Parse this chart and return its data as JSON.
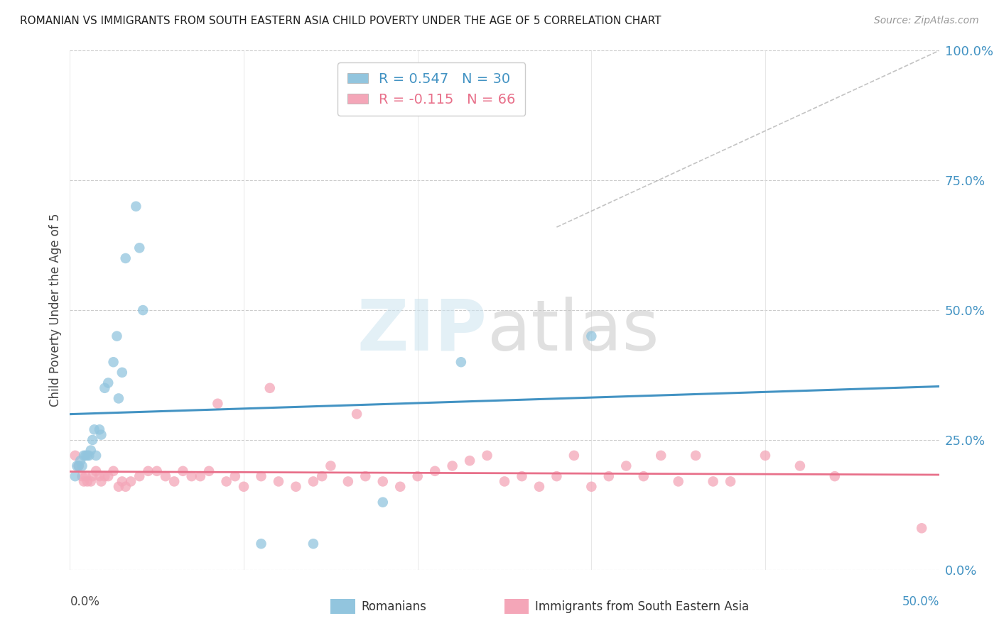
{
  "title": "ROMANIAN VS IMMIGRANTS FROM SOUTH EASTERN ASIA CHILD POVERTY UNDER THE AGE OF 5 CORRELATION CHART",
  "source": "Source: ZipAtlas.com",
  "ylabel": "Child Poverty Under the Age of 5",
  "ytick_vals": [
    0,
    25,
    50,
    75,
    100
  ],
  "xlim": [
    0,
    50
  ],
  "ylim": [
    0,
    100
  ],
  "blue_color": "#92c5de",
  "pink_color": "#f4a6b8",
  "blue_line_color": "#4393c3",
  "pink_line_color": "#e8708a",
  "romanians_x": [
    0.3,
    0.4,
    0.5,
    0.6,
    0.7,
    0.8,
    0.9,
    1.0,
    1.1,
    1.2,
    1.3,
    1.4,
    1.5,
    1.7,
    1.8,
    2.0,
    2.2,
    2.5,
    2.7,
    3.0,
    3.2,
    3.8,
    4.2,
    11.0,
    14.0,
    18.0,
    22.5,
    30.0,
    2.8,
    4.0
  ],
  "romanians_y": [
    18,
    20,
    20,
    21,
    20,
    22,
    22,
    22,
    22,
    23,
    25,
    27,
    22,
    27,
    26,
    35,
    36,
    40,
    45,
    38,
    60,
    70,
    50,
    5,
    5,
    13,
    40,
    45,
    33,
    62
  ],
  "immigrants_x": [
    0.3,
    0.5,
    0.7,
    0.8,
    0.9,
    1.0,
    1.2,
    1.3,
    1.5,
    1.7,
    1.8,
    2.0,
    2.2,
    2.5,
    2.8,
    3.0,
    3.2,
    3.5,
    4.0,
    4.5,
    5.0,
    5.5,
    6.0,
    6.5,
    7.0,
    7.5,
    8.0,
    9.0,
    9.5,
    10.0,
    11.0,
    12.0,
    13.0,
    14.0,
    14.5,
    15.0,
    16.0,
    16.5,
    17.0,
    18.0,
    19.0,
    20.0,
    21.0,
    22.0,
    23.0,
    24.0,
    25.0,
    26.0,
    27.0,
    28.0,
    29.0,
    30.0,
    31.0,
    32.0,
    33.0,
    34.0,
    35.0,
    36.0,
    37.0,
    38.0,
    40.0,
    42.0,
    44.0,
    49.0,
    8.5,
    11.5
  ],
  "immigrants_y": [
    22,
    20,
    18,
    17,
    18,
    17,
    17,
    18,
    19,
    18,
    17,
    18,
    18,
    19,
    16,
    17,
    16,
    17,
    18,
    19,
    19,
    18,
    17,
    19,
    18,
    18,
    19,
    17,
    18,
    16,
    18,
    17,
    16,
    17,
    18,
    20,
    17,
    30,
    18,
    17,
    16,
    18,
    19,
    20,
    21,
    22,
    17,
    18,
    16,
    18,
    22,
    16,
    18,
    20,
    18,
    22,
    17,
    22,
    17,
    17,
    22,
    20,
    18,
    8,
    32,
    35
  ],
  "diag_line_x": [
    28,
    50
  ],
  "diag_line_y": [
    66,
    100
  ]
}
